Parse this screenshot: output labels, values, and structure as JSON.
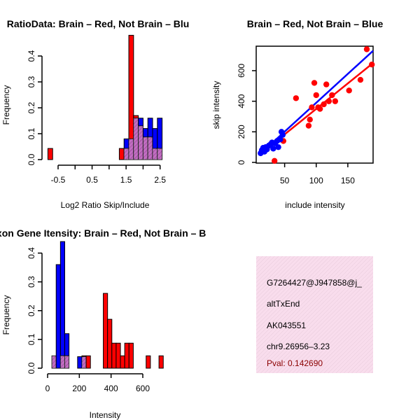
{
  "colors": {
    "red": "#ff0000",
    "blue": "#0000ff",
    "overlap": "#a020a0",
    "panel_bg": "#f8d8ea",
    "pval": "#8b0000"
  },
  "chart_data": [
    {
      "type": "bar",
      "id": "ratio-hist",
      "title": "RatioData: Brain – Red, Not Brain – Blu",
      "xlabel": "Log2 Ratio Skip/Include",
      "ylabel": "Frequency",
      "xlim": [
        -0.85,
        2.65
      ],
      "ylim": [
        0,
        0.5
      ],
      "xticks": [
        -0.5,
        0.5,
        1.5,
        2.5
      ],
      "xtick_labels": [
        "-0.5",
        "0.5",
        "1.5",
        "2.5"
      ],
      "xticks_minor": [
        -0.5,
        0,
        0.5,
        1,
        1.5,
        2,
        2.5
      ],
      "yticks": [
        0.0,
        0.1,
        0.2,
        0.3,
        0.4
      ],
      "ytick_labels": [
        "0.0",
        "0.1",
        "0.2",
        "0.3",
        "0.4"
      ],
      "bin_width": 0.14,
      "bins_start": [
        -0.8,
        1.3,
        1.44,
        1.58,
        1.72,
        1.86,
        2.0,
        2.14,
        2.28,
        2.42
      ],
      "series": [
        {
          "name": "Brain",
          "color": "red",
          "values": [
            0.043,
            0.043,
            0.043,
            0.48,
            0.17,
            0.13,
            0.087,
            0.087,
            0.043,
            0.043
          ]
        },
        {
          "name": "Not Brain",
          "color": "blue",
          "values": [
            0,
            0,
            0.08,
            0.08,
            0.16,
            0.16,
            0.12,
            0.16,
            0.12,
            0.16
          ]
        }
      ]
    },
    {
      "type": "scatter",
      "id": "intensity-scatter",
      "title": "Brain – Red, Not Brain – Blue",
      "xlabel": "include intensity",
      "ylabel": "skip intensity",
      "xlim": [
        5,
        190
      ],
      "ylim": [
        0,
        760
      ],
      "xticks": [
        50,
        100,
        150
      ],
      "xtick_labels": [
        "50",
        "100",
        "150"
      ],
      "yticks": [
        0,
        200,
        400,
        600
      ],
      "ytick_labels": [
        "0",
        "200",
        "400",
        "600"
      ],
      "series": [
        {
          "name": "Brain",
          "color": "red",
          "x": [
            34,
            48,
            68,
            88,
            90,
            93,
            97,
            100,
            103,
            106,
            112,
            116,
            120,
            125,
            130,
            152,
            170,
            180,
            188
          ],
          "y": [
            10,
            140,
            420,
            240,
            280,
            360,
            520,
            440,
            360,
            350,
            380,
            510,
            400,
            440,
            400,
            470,
            540,
            740,
            640
          ],
          "fit": [
            [
              10,
              50
            ],
            [
              190,
              650
            ]
          ]
        },
        {
          "name": "Not Brain",
          "color": "blue",
          "x": [
            12,
            14,
            16,
            18,
            20,
            22,
            25,
            28,
            30,
            32,
            35,
            38,
            40,
            43,
            45,
            47
          ],
          "y": [
            60,
            80,
            95,
            70,
            100,
            85,
            110,
            120,
            130,
            90,
            125,
            140,
            100,
            150,
            200,
            180
          ],
          "fit": [
            [
              10,
              50
            ],
            [
              190,
              730
            ]
          ]
        }
      ]
    },
    {
      "type": "bar",
      "id": "intensity-hist",
      "title": "Exon Gene Itensity: Brain – Red, Not Brain – B",
      "xlabel": "Intensity",
      "ylabel": "Frequency",
      "xlim": [
        0,
        750
      ],
      "ylim": [
        0,
        0.45
      ],
      "xticks": [
        0,
        200,
        400,
        600
      ],
      "xtick_labels": [
        "0",
        "200",
        "400",
        "600"
      ],
      "yticks": [
        0.0,
        0.1,
        0.2,
        0.3,
        0.4
      ],
      "ytick_labels": [
        "0.0",
        "0.1",
        "0.2",
        "0.3",
        "0.4"
      ],
      "bin_width": 27,
      "bins_start": [
        27,
        54,
        81,
        108,
        189,
        216,
        243,
        351,
        378,
        405,
        432,
        459,
        486,
        513,
        621,
        702
      ],
      "series": [
        {
          "name": "Brain",
          "color": "red",
          "values": [
            0.043,
            0,
            0.043,
            0.043,
            0,
            0.043,
            0.043,
            0.26,
            0.17,
            0.087,
            0.087,
            0.043,
            0.087,
            0.087,
            0.043,
            0.043
          ]
        },
        {
          "name": "Not Brain",
          "color": "blue",
          "values": [
            0.043,
            0.36,
            0.44,
            0.12,
            0.04,
            0.04,
            0,
            0,
            0,
            0,
            0,
            0,
            0,
            0,
            0,
            0
          ]
        }
      ]
    }
  ],
  "info_panel": {
    "id": "G7264427@J947858@j_",
    "event_type": "altTxEnd",
    "accession": "AK043551",
    "location": "chr9.26956–3.23",
    "pval": "Pval: 0.142690"
  }
}
